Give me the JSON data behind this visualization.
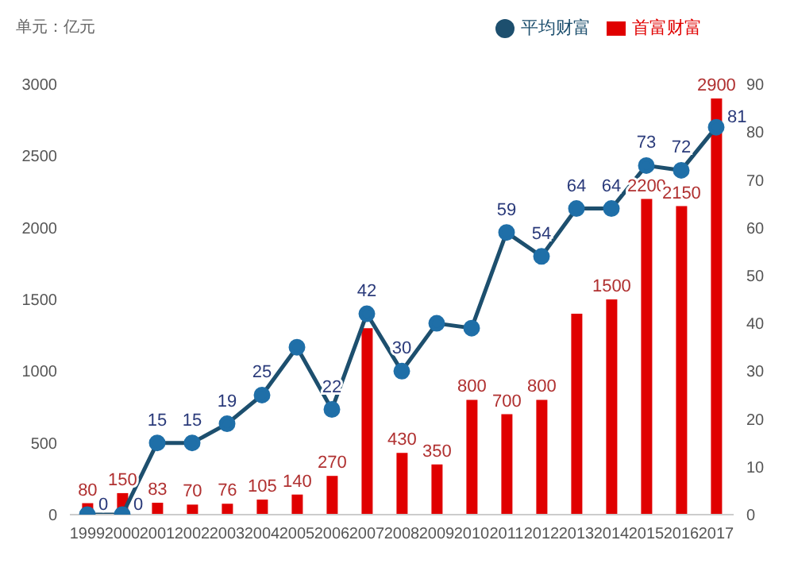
{
  "chart_data": {
    "type": "bar",
    "ylabel": "单元：亿元",
    "categories": [
      "1999",
      "2000",
      "2001",
      "2002",
      "2003",
      "2004",
      "2005",
      "2006",
      "2007",
      "2008",
      "2009",
      "2010",
      "2011",
      "2012",
      "2013",
      "2014",
      "2015",
      "2016",
      "2017"
    ],
    "series": [
      {
        "name": "首富财富",
        "color": "#e00000",
        "values": [
          80,
          150,
          83,
          70,
          76,
          105,
          140,
          270,
          1300,
          430,
          350,
          800,
          700,
          800,
          1400,
          1500,
          2200,
          2150,
          2900
        ],
        "value_labels": [
          "80",
          "150",
          "83",
          "70",
          "76",
          "105",
          "140",
          "270",
          null,
          "430",
          "350",
          "800",
          "700",
          "800",
          null,
          "1500",
          "2200",
          "2150",
          "2900"
        ]
      },
      {
        "name": "平均财富",
        "type": "line",
        "axis": "y2",
        "color": "#1f6fa8",
        "values": [
          0,
          0,
          15,
          15,
          19,
          25,
          35,
          22,
          42,
          30,
          40,
          39,
          59,
          54,
          64,
          64,
          73,
          72,
          81
        ],
        "value_labels": [
          "0",
          "0",
          "15",
          "15",
          "19",
          "25",
          null,
          "22",
          "42",
          "30",
          null,
          null,
          "59",
          "54",
          "64",
          "64",
          "73",
          "72",
          "81"
        ]
      }
    ],
    "ylim": [
      0,
      3000
    ],
    "yticks": [
      0,
      500,
      1000,
      1500,
      2000,
      2500,
      3000
    ],
    "y2lim": [
      0,
      90
    ],
    "y2ticks": [
      0,
      10,
      20,
      30,
      40,
      50,
      60,
      70,
      80,
      90
    ],
    "grid": false,
    "legend": "top right",
    "marker": "circle"
  }
}
